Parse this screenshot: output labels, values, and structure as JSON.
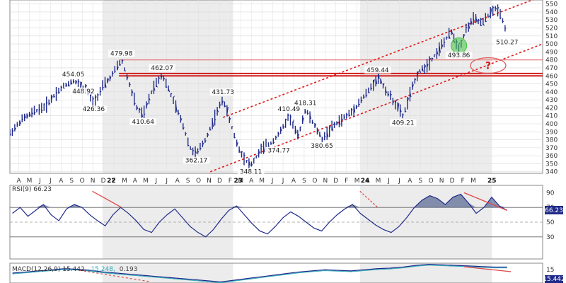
{
  "chart_data": [
    {
      "type": "ohlc",
      "series": [
        {
          "name": "",
          "color": "#1f2a8a"
        }
      ],
      "time_axis": {
        "start": 2021.2,
        "end": 2025.4
      },
      "year_labels": [
        "22",
        "23",
        "24",
        "25"
      ],
      "month_labels": [
        "A",
        "M",
        "J",
        "J",
        "A",
        "S",
        "O",
        "N",
        "D",
        "F",
        "M",
        "A",
        "M",
        "J",
        "J",
        "A",
        "S",
        "O",
        "N",
        "D",
        "F",
        "M",
        "A",
        "M",
        "J",
        "J",
        "A",
        "S",
        "O",
        "N",
        "D",
        "F",
        "M",
        "A",
        "M",
        "J",
        "J",
        "A",
        "S",
        "O",
        "N",
        "D",
        "F",
        "M"
      ],
      "price_range": [
        338,
        555
      ],
      "y_ticks": [
        340,
        350,
        360,
        370,
        380,
        390,
        400,
        410,
        420,
        430,
        440,
        450,
        460,
        470,
        480,
        490,
        500,
        510,
        520,
        530,
        540,
        550
      ],
      "price_path": [
        [
          2021.2,
          388
        ],
        [
          2021.3,
          406
        ],
        [
          2021.4,
          416
        ],
        [
          2021.48,
          422
        ],
        [
          2021.56,
          438
        ],
        [
          2021.63,
          448
        ],
        [
          2021.7,
          454
        ],
        [
          2021.8,
          444
        ],
        [
          2021.86,
          426
        ],
        [
          2021.93,
          446
        ],
        [
          2022.0,
          460
        ],
        [
          2022.08,
          479.98
        ],
        [
          2022.14,
          450
        ],
        [
          2022.2,
          420
        ],
        [
          2022.25,
          410.64
        ],
        [
          2022.33,
          446
        ],
        [
          2022.4,
          462.07
        ],
        [
          2022.48,
          432
        ],
        [
          2022.56,
          400
        ],
        [
          2022.62,
          370
        ],
        [
          2022.67,
          362.17
        ],
        [
          2022.74,
          380
        ],
        [
          2022.82,
          410
        ],
        [
          2022.88,
          431.73
        ],
        [
          2022.94,
          400
        ],
        [
          2023.0,
          370
        ],
        [
          2023.07,
          352
        ],
        [
          2023.1,
          348.11
        ],
        [
          2023.18,
          368
        ],
        [
          2023.26,
          376
        ],
        [
          2023.34,
          392
        ],
        [
          2023.4,
          410.49
        ],
        [
          2023.47,
          384
        ],
        [
          2023.53,
          418.31
        ],
        [
          2023.6,
          398
        ],
        [
          2023.66,
          380.65
        ],
        [
          2023.74,
          396
        ],
        [
          2023.82,
          406
        ],
        [
          2023.9,
          416
        ],
        [
          2023.98,
          432
        ],
        [
          2024.05,
          446
        ],
        [
          2024.1,
          459.44
        ],
        [
          2024.17,
          440
        ],
        [
          2024.24,
          425
        ],
        [
          2024.3,
          409.21
        ],
        [
          2024.36,
          440
        ],
        [
          2024.42,
          465
        ],
        [
          2024.48,
          472
        ],
        [
          2024.55,
          486
        ],
        [
          2024.62,
          502
        ],
        [
          2024.68,
          515
        ],
        [
          2024.74,
          493.86
        ],
        [
          2024.8,
          520
        ],
        [
          2024.86,
          532
        ],
        [
          2024.92,
          525
        ],
        [
          2024.98,
          538
        ],
        [
          2025.04,
          545
        ],
        [
          2025.08,
          533
        ],
        [
          2025.12,
          510.27
        ]
      ],
      "annotations": [
        {
          "label": "454.05",
          "t": 2021.7,
          "v": 454.05,
          "pos": "above"
        },
        {
          "label": "448.92",
          "t": 2021.78,
          "v": 448.92,
          "pos": "below"
        },
        {
          "label": "426.36",
          "t": 2021.86,
          "v": 426.36,
          "pos": "below"
        },
        {
          "label": "479.98",
          "t": 2022.08,
          "v": 479.98,
          "pos": "above"
        },
        {
          "label": "410.64",
          "t": 2022.25,
          "v": 410.64,
          "pos": "below"
        },
        {
          "label": "462.07",
          "t": 2022.4,
          "v": 462.07,
          "pos": "above"
        },
        {
          "label": "362.17",
          "t": 2022.67,
          "v": 362.17,
          "pos": "below"
        },
        {
          "label": "431.73",
          "t": 2022.88,
          "v": 431.73,
          "pos": "above"
        },
        {
          "label": "348.11",
          "t": 2023.1,
          "v": 348.11,
          "pos": "below"
        },
        {
          "label": "410.49",
          "t": 2023.4,
          "v": 410.49,
          "pos": "above"
        },
        {
          "label": "374.77",
          "t": 2023.32,
          "v": 374.77,
          "pos": "below"
        },
        {
          "label": "418.31",
          "t": 2023.53,
          "v": 418.31,
          "pos": "above"
        },
        {
          "label": "380.65",
          "t": 2023.66,
          "v": 380.65,
          "pos": "below"
        },
        {
          "label": "459.44",
          "t": 2024.1,
          "v": 459.44,
          "pos": "above"
        },
        {
          "label": "409.21",
          "t": 2024.3,
          "v": 409.21,
          "pos": "below"
        },
        {
          "label": "493.86",
          "t": 2024.74,
          "v": 493.86,
          "pos": "below"
        },
        {
          "label": "510.27",
          "t": 2025.12,
          "v": 510.27,
          "pos": "below"
        }
      ],
      "horizontal_levels": [
        {
          "value": 480,
          "color": "#e06a6a"
        },
        {
          "value": 463,
          "color": "#d11f1f"
        },
        {
          "value": 460,
          "color": "#d11f1f"
        }
      ],
      "trendlines": [
        {
          "from": [
            2022.88,
            408
          ],
          "to": [
            2025.4,
            560
          ],
          "color": "#e01818"
        },
        {
          "from": [
            2022.78,
            340
          ],
          "to": [
            2025.4,
            500
          ],
          "color": "#e01818"
        }
      ],
      "markers": [
        {
          "type": "circle",
          "t": 2024.74,
          "v": 498,
          "color": "#3fc43f"
        },
        {
          "type": "ellipse",
          "t": 2024.97,
          "v": 473,
          "color": "#e06060",
          "text": "?"
        }
      ],
      "shaded_regions": [
        [
          2021.93,
          2022.96
        ],
        [
          2023.96,
          2025.0
        ]
      ]
    },
    {
      "type": "line",
      "title": "RSI(9) 66.23",
      "last_value": "66.23",
      "ylim": [
        0,
        100
      ],
      "y_ticks": [
        30,
        50,
        70,
        90
      ],
      "reference_lines": [
        70,
        50,
        30
      ],
      "series": [
        {
          "name": "RSI(9)",
          "values": [
            62,
            70,
            58,
            66,
            74,
            60,
            52,
            68,
            74,
            70,
            60,
            52,
            45,
            60,
            70,
            62,
            52,
            40,
            36,
            50,
            60,
            68,
            56,
            44,
            36,
            30,
            40,
            54,
            66,
            72,
            60,
            48,
            38,
            34,
            44,
            56,
            64,
            58,
            50,
            42,
            38,
            50,
            60,
            68,
            74,
            62,
            54,
            46,
            40,
            36,
            44,
            56,
            70,
            80,
            86,
            82,
            74,
            84,
            88,
            76,
            62,
            70,
            84,
            72,
            66
          ]
        }
      ],
      "annotations": [
        {
          "type": "divergence",
          "color": "#e04848",
          "t0": 2021.85,
          "t1": 2022.08
        },
        {
          "type": "divergence",
          "color": "#e04848",
          "t0": 2023.96,
          "t1": 2024.1
        },
        {
          "type": "divergence",
          "color": "#e04848",
          "t0": 2024.78,
          "t1": 2025.12
        }
      ]
    },
    {
      "type": "line",
      "title": "MACD(12,26,9) 15.442, 15.248, 0.193",
      "legend_macd": "MACD(12,26,9) 15.442,",
      "legend_signal": "15.248,",
      "legend_hist": "0.193",
      "series_colors": {
        "macd": "#1f2a8a",
        "signal": "#2aa9b8"
      },
      "y_ticks": [
        "15",
        "15.442"
      ],
      "series": [
        {
          "name": "MACD",
          "values": [
            4,
            6,
            8,
            10,
            12,
            11,
            9,
            6,
            4,
            2,
            0,
            -2,
            -4,
            -6,
            -8,
            -10,
            -12,
            -9,
            -6,
            -3,
            0,
            3,
            6,
            8,
            10,
            9,
            8,
            10,
            12,
            13,
            15,
            18,
            20,
            19,
            18,
            17,
            16,
            15,
            15
          ]
        }
      ]
    }
  ]
}
